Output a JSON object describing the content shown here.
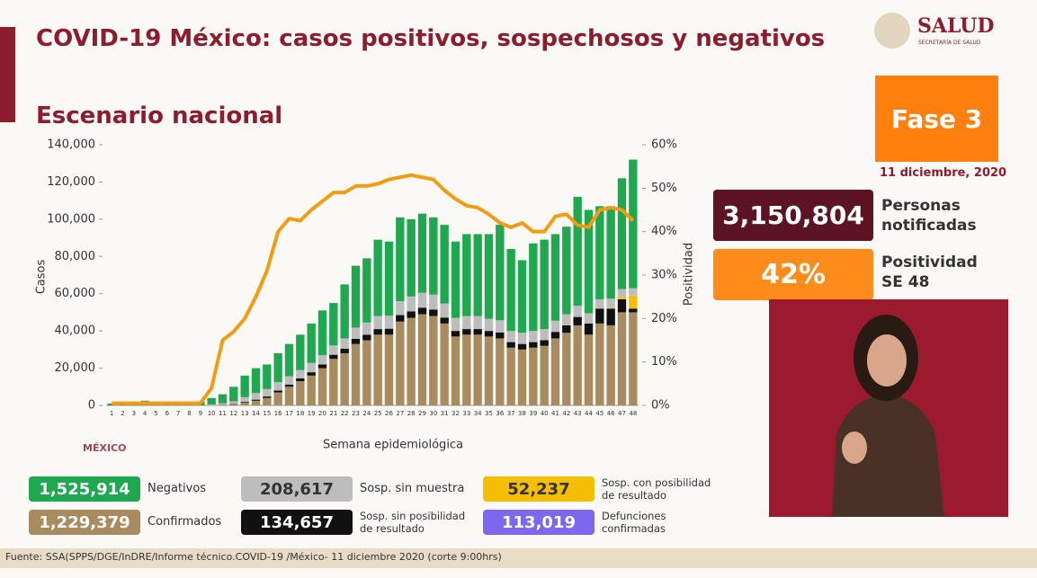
{
  "header": {
    "title": "COVID-19 México: casos positivos, sospechosos y negativos",
    "subtitle": "Escenario nacional",
    "logo": "SALUD",
    "logo_sub": "SECRETARÍA DE SALUD",
    "watermark": "MÉXICO"
  },
  "chart_data": {
    "type": "bar",
    "stacked": true,
    "y_label": "Casos",
    "y2_label": "Positividad",
    "x_label": "Semana epidemiológica",
    "categories": [
      "1",
      "2",
      "3",
      "4",
      "5",
      "6",
      "7",
      "8",
      "9",
      "10",
      "11",
      "12",
      "13",
      "14",
      "15",
      "16",
      "17",
      "18",
      "19",
      "20",
      "21",
      "22",
      "23",
      "24",
      "25",
      "26",
      "27",
      "28",
      "29",
      "30",
      "31",
      "32",
      "33",
      "34",
      "35",
      "36",
      "37",
      "38",
      "39",
      "40",
      "41",
      "42",
      "43",
      "44",
      "45",
      "46",
      "47",
      "48"
    ],
    "ylim": [
      0,
      140000
    ],
    "yticks": [
      0,
      {
        "value": 20000,
        "label": "20,000"
      },
      {
        "value": 40000,
        "label": "40,000"
      },
      {
        "value": 60000,
        "label": "60,000"
      },
      {
        "value": 80000,
        "label": "80,000"
      },
      {
        "value": 100000,
        "label": "100,000"
      },
      {
        "value": 120000,
        "label": "120,000"
      },
      {
        "value": 140000,
        "label": "140,000"
      }
    ],
    "y2lim": [
      0,
      60
    ],
    "y2ticks": [
      {
        "value": 0,
        "label": "0%"
      },
      {
        "value": 10,
        "label": "10%"
      },
      {
        "value": 20,
        "label": "20%"
      },
      {
        "value": 30,
        "label": "30%"
      },
      {
        "value": 40,
        "label": "40%"
      },
      {
        "value": 50,
        "label": "50%"
      },
      {
        "value": 60,
        "label": "60%"
      }
    ],
    "series": [
      {
        "name": "Confirmados",
        "total": "1,229,379",
        "color": "#a88c5f",
        "values": [
          0,
          0,
          0,
          0,
          0,
          0,
          0,
          0,
          0,
          0,
          200,
          500,
          1500,
          2500,
          4000,
          7000,
          10000,
          13000,
          16000,
          20000,
          25000,
          28000,
          33000,
          35000,
          38000,
          38000,
          45000,
          47000,
          49000,
          48000,
          44000,
          37000,
          38000,
          38000,
          37000,
          36000,
          31000,
          30000,
          31000,
          32000,
          36000,
          39000,
          43000,
          38000,
          44000,
          43000,
          50000,
          50000
        ]
      },
      {
        "name": "Sosp. sin posibilidad de resultado",
        "total": "134,657",
        "color": "#111111",
        "values": [
          0,
          0,
          0,
          0,
          0,
          0,
          0,
          0,
          0,
          0,
          100,
          200,
          400,
          600,
          800,
          1000,
          1200,
          1500,
          1800,
          2000,
          2200,
          2500,
          2800,
          3000,
          3000,
          3200,
          3500,
          3500,
          3500,
          3500,
          3200,
          3000,
          3000,
          3000,
          3000,
          3200,
          3000,
          3000,
          3000,
          3000,
          3500,
          4000,
          4500,
          6000,
          8000,
          9000,
          7000,
          2000
        ]
      },
      {
        "name": "Sosp. con posibilidad de resultado",
        "total": "52,237",
        "color": "#f6be00",
        "values": [
          0,
          0,
          0,
          0,
          0,
          0,
          0,
          0,
          0,
          0,
          0,
          0,
          0,
          0,
          0,
          0,
          0,
          0,
          0,
          0,
          0,
          0,
          0,
          0,
          0,
          0,
          0,
          0,
          0,
          0,
          0,
          0,
          0,
          0,
          0,
          0,
          0,
          0,
          0,
          0,
          0,
          0,
          0,
          0,
          0,
          300,
          1500,
          7000
        ]
      },
      {
        "name": "Sosp. sin muestra",
        "total": "208,617",
        "color": "#bdbdbd",
        "values": [
          0,
          0,
          0,
          0,
          0,
          0,
          0,
          0,
          0,
          500,
          800,
          1500,
          2500,
          3500,
          4000,
          4500,
          4500,
          4500,
          5000,
          5000,
          5000,
          5500,
          6000,
          6500,
          7000,
          7000,
          7500,
          8000,
          8000,
          8000,
          7500,
          7000,
          7000,
          7000,
          6500,
          6500,
          6000,
          6000,
          6000,
          6000,
          6000,
          6000,
          6000,
          5500,
          5000,
          5000,
          4000,
          4000
        ]
      },
      {
        "name": "Negativos",
        "total": "1,525,914",
        "color": "#1fa84f",
        "values": [
          1000,
          1500,
          2000,
          2500,
          2000,
          2000,
          2000,
          2000,
          2000,
          3500,
          4900,
          7800,
          11600,
          13400,
          13200,
          15500,
          17300,
          19000,
          21200,
          24000,
          22800,
          29000,
          33200,
          34500,
          41000,
          39800,
          45000,
          41500,
          42500,
          41500,
          42300,
          41000,
          44000,
          44000,
          45500,
          51300,
          44000,
          39000,
          47000,
          48000,
          46500,
          47000,
          58500,
          55500,
          50000,
          49700,
          59500,
          69000
        ]
      },
      {
        "axis": "y2",
        "color": "#f39c12",
        "values": [
          0.5,
          0.5,
          0.5,
          0.5,
          0.5,
          0.5,
          0.5,
          0.5,
          0.5,
          4,
          15,
          17,
          20,
          25,
          31,
          40,
          43,
          42.5,
          45,
          47,
          49,
          49,
          50.5,
          50.5,
          51,
          52,
          52.5,
          53,
          52.5,
          52,
          49.5,
          47.5,
          46,
          45.5,
          44,
          42,
          41,
          42,
          40,
          40,
          43.5,
          44,
          41.5,
          41,
          45,
          45.5,
          45,
          42.5
        ]
      }
    ],
    "deaths": {
      "name": "Defunciones confirmadas",
      "total": "113,019",
      "color": "#7b68ee"
    }
  },
  "panel": {
    "phase": "Fase 3",
    "date": "11 diciembre, 2020",
    "notified": "3,150,804",
    "notified_label": "Personas notificadas",
    "positivity": "42%",
    "positivity_label": "Positividad SE 48"
  },
  "footer": "Fuente: SSA(SPPS/DGE/InDRE/Informe técnico.COVID-19 /México- 11 diciembre 2020 (corte 9:00hrs)"
}
